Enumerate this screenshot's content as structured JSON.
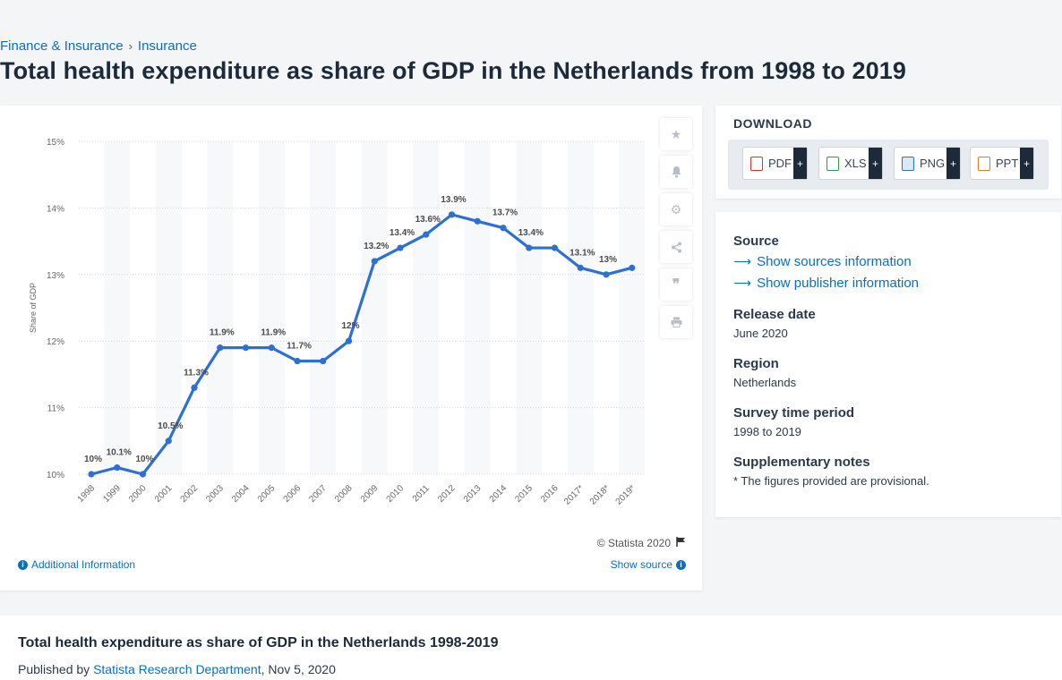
{
  "breadcrumb": {
    "item1": "Finance & Insurance",
    "sep": "›",
    "item2": "Insurance"
  },
  "page_title": "Total health expenditure as share of GDP in the Netherlands from 1998 to 2019",
  "chart_data": {
    "type": "line",
    "ylabel": "Share of GDP",
    "ylim": [
      10,
      15
    ],
    "yticks": [
      "10%",
      "11%",
      "12%",
      "13%",
      "14%",
      "15%"
    ],
    "categories": [
      "1998",
      "1999",
      "2000",
      "2001",
      "2002",
      "2003",
      "2004",
      "2005",
      "2006",
      "2007",
      "2008",
      "2009",
      "2010",
      "2011",
      "2012",
      "2013",
      "2014",
      "2015",
      "2016",
      "2017*",
      "2018*",
      "2019*"
    ],
    "values": [
      10.0,
      10.1,
      10.0,
      10.5,
      11.3,
      11.9,
      11.9,
      11.9,
      11.7,
      11.7,
      12.0,
      13.2,
      13.4,
      13.6,
      13.9,
      13.8,
      13.7,
      13.4,
      13.4,
      13.1,
      13.0,
      13.1
    ],
    "data_labels": [
      "10%",
      "10.1%",
      "10%",
      "10.5%",
      "11.3%",
      "11.9%",
      "",
      "11.9%",
      "11.7%",
      "",
      "12%",
      "13.2%",
      "13.4%",
      "13.6%",
      "13.9%",
      "",
      "13.7%",
      "13.4%",
      "",
      "13.1%",
      "13%",
      ""
    ],
    "line_color": "#2d6fd2",
    "grid": "horizontal-dotted",
    "alternating_column_bands": true
  },
  "credits": "© Statista 2020",
  "show_source": "Show source",
  "additional_info": "Additional Information",
  "tools": [
    {
      "icon": "star-icon"
    },
    {
      "icon": "bell-icon"
    },
    {
      "icon": "gear-icon"
    },
    {
      "icon": "share-icon"
    },
    {
      "icon": "quote-icon"
    },
    {
      "icon": "print-icon"
    }
  ],
  "download": {
    "title": "DOWNLOAD",
    "buttons": [
      {
        "label": "PDF",
        "plus": "+",
        "color": "#d9342b"
      },
      {
        "label": "XLS",
        "plus": "+",
        "color": "#2e9a4a"
      },
      {
        "label": "PNG",
        "plus": "+",
        "color": "#2f6fc4"
      },
      {
        "label": "PPT",
        "plus": "+",
        "color": "#e07b21"
      }
    ]
  },
  "info": {
    "source_label": "Source",
    "sources_link": "Show sources information",
    "publisher_link": "Show publisher information",
    "release_label": "Release date",
    "release_value": "June 2020",
    "region_label": "Region",
    "region_value": "Netherlands",
    "survey_label": "Survey time period",
    "survey_value": "1998 to 2019",
    "notes_label": "Supplementary notes",
    "notes_value": "* The figures provided are provisional."
  },
  "bottom": {
    "title": "Total health expenditure as share of GDP in the Netherlands 1998-2019",
    "published_prefix": "Published by",
    "publisher": "Statista Research Department",
    "date": ", Nov 5, 2020"
  }
}
